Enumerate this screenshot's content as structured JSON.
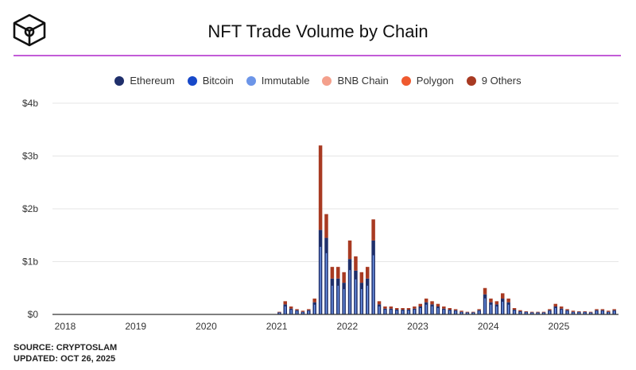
{
  "chart_data": {
    "type": "bar",
    "stacked": true,
    "title": "NFT Trade Volume by Chain",
    "xlabel": "",
    "ylabel": "",
    "ylim": [
      0,
      4
    ],
    "y_unit": "billion USD",
    "y_ticks": [
      "$0",
      "$1b",
      "$2b",
      "$3b",
      "$4b"
    ],
    "x_ticks": [
      "2018",
      "2019",
      "2020",
      "2021",
      "2022",
      "2023",
      "2024",
      "2025"
    ],
    "grid": true,
    "legend_position": "top",
    "legend": [
      {
        "name": "Ethereum",
        "color": "#1f2f6b"
      },
      {
        "name": "Bitcoin",
        "color": "#1748c9"
      },
      {
        "name": "Immutable",
        "color": "#6c95e8"
      },
      {
        "name": "BNB Chain",
        "color": "#f4a08c"
      },
      {
        "name": "Polygon",
        "color": "#ef5a2f"
      },
      {
        "name": "9 Others",
        "color": "#a83a22"
      }
    ],
    "categories": [
      "2021-01",
      "2021-02",
      "2021-03",
      "2021-04",
      "2021-05",
      "2021-06",
      "2021-07",
      "2021-08",
      "2021-09",
      "2021-10",
      "2021-11",
      "2021-12",
      "2022-01",
      "2022-02",
      "2022-03",
      "2022-04",
      "2022-05",
      "2022-06",
      "2022-07",
      "2022-08",
      "2022-09",
      "2022-10",
      "2022-11",
      "2022-12",
      "2023-01",
      "2023-02",
      "2023-03",
      "2023-04",
      "2023-05",
      "2023-06",
      "2023-07",
      "2023-08",
      "2023-09",
      "2023-10",
      "2023-11",
      "2023-12",
      "2024-01",
      "2024-02",
      "2024-03",
      "2024-04",
      "2024-05",
      "2024-06",
      "2024-07",
      "2024-08",
      "2024-09",
      "2024-10",
      "2024-11",
      "2024-12",
      "2025-01",
      "2025-02",
      "2025-03",
      "2025-04",
      "2025-05",
      "2025-06",
      "2025-07",
      "2025-08",
      "2025-09",
      "2025-10"
    ],
    "series": [
      {
        "name": "Ethereum",
        "color": "#1f2f6b",
        "values": [
          0.04,
          0.19,
          0.11,
          0.08,
          0.05,
          0.08,
          0.23,
          1.6,
          1.45,
          0.68,
          0.68,
          0.6,
          1.05,
          0.83,
          0.6,
          0.68,
          1.4,
          0.19,
          0.11,
          0.11,
          0.09,
          0.09,
          0.09,
          0.11,
          0.15,
          0.23,
          0.19,
          0.15,
          0.11,
          0.09,
          0.08,
          0.05,
          0.04,
          0.04,
          0.08,
          0.38,
          0.23,
          0.19,
          0.3,
          0.23,
          0.09,
          0.06,
          0.05,
          0.04,
          0.04,
          0.04,
          0.08,
          0.15,
          0.11,
          0.08,
          0.05,
          0.05,
          0.05,
          0.04,
          0.08,
          0.08,
          0.05,
          0.08
        ]
      },
      {
        "name": "9 Others",
        "color": "#a83a22",
        "values": [
          0.01,
          0.06,
          0.04,
          0.02,
          0.02,
          0.02,
          0.07,
          1.6,
          0.45,
          0.22,
          0.22,
          0.2,
          0.35,
          0.27,
          0.2,
          0.22,
          0.4,
          0.06,
          0.04,
          0.04,
          0.03,
          0.03,
          0.03,
          0.04,
          0.05,
          0.07,
          0.06,
          0.05,
          0.04,
          0.03,
          0.02,
          0.02,
          0.01,
          0.01,
          0.02,
          0.12,
          0.07,
          0.06,
          0.1,
          0.07,
          0.03,
          0.02,
          0.01,
          0.01,
          0.01,
          0.01,
          0.02,
          0.05,
          0.04,
          0.02,
          0.02,
          0.01,
          0.01,
          0.01,
          0.02,
          0.02,
          0.02,
          0.02
        ]
      }
    ]
  },
  "footer": {
    "source": "SOURCE: CRYPTOSLAM",
    "updated": "UPDATED: OCT 26, 2025"
  },
  "accent_color": "#c35bd8"
}
